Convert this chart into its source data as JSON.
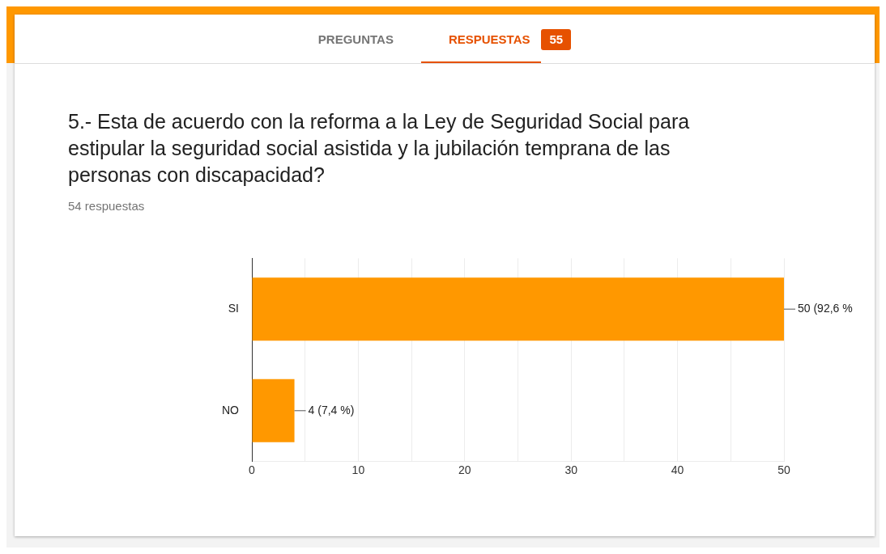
{
  "chart_data": {
    "type": "bar",
    "orientation": "horizontal",
    "title": "5.- Esta de acuerdo con la reforma a la Ley de Seguridad Social para estipular la seguridad social asistida y la jubilación temprana de las personas con discapacidad?",
    "subtitle": "54 respuestas",
    "annotations": [
      "PREGUNTAS",
      "RESPUESTAS",
      "55"
    ],
    "categories": [
      "SI",
      "NO"
    ],
    "values": [
      50,
      4
    ],
    "color": "#ff9800",
    "value_labels": [
      "50 (92,6 %",
      "4 (7,4 %)"
    ],
    "xlim": [
      0,
      50
    ],
    "xticks": [
      0,
      {
        "value": 5,
        "label": null
      },
      10,
      {
        "value": 15,
        "label": null
      },
      20,
      {
        "value": 25,
        "label": null
      },
      30,
      {
        "value": 35,
        "label": null
      },
      40,
      {
        "value": 45,
        "label": null
      },
      50
    ],
    "grid": "x"
  }
}
